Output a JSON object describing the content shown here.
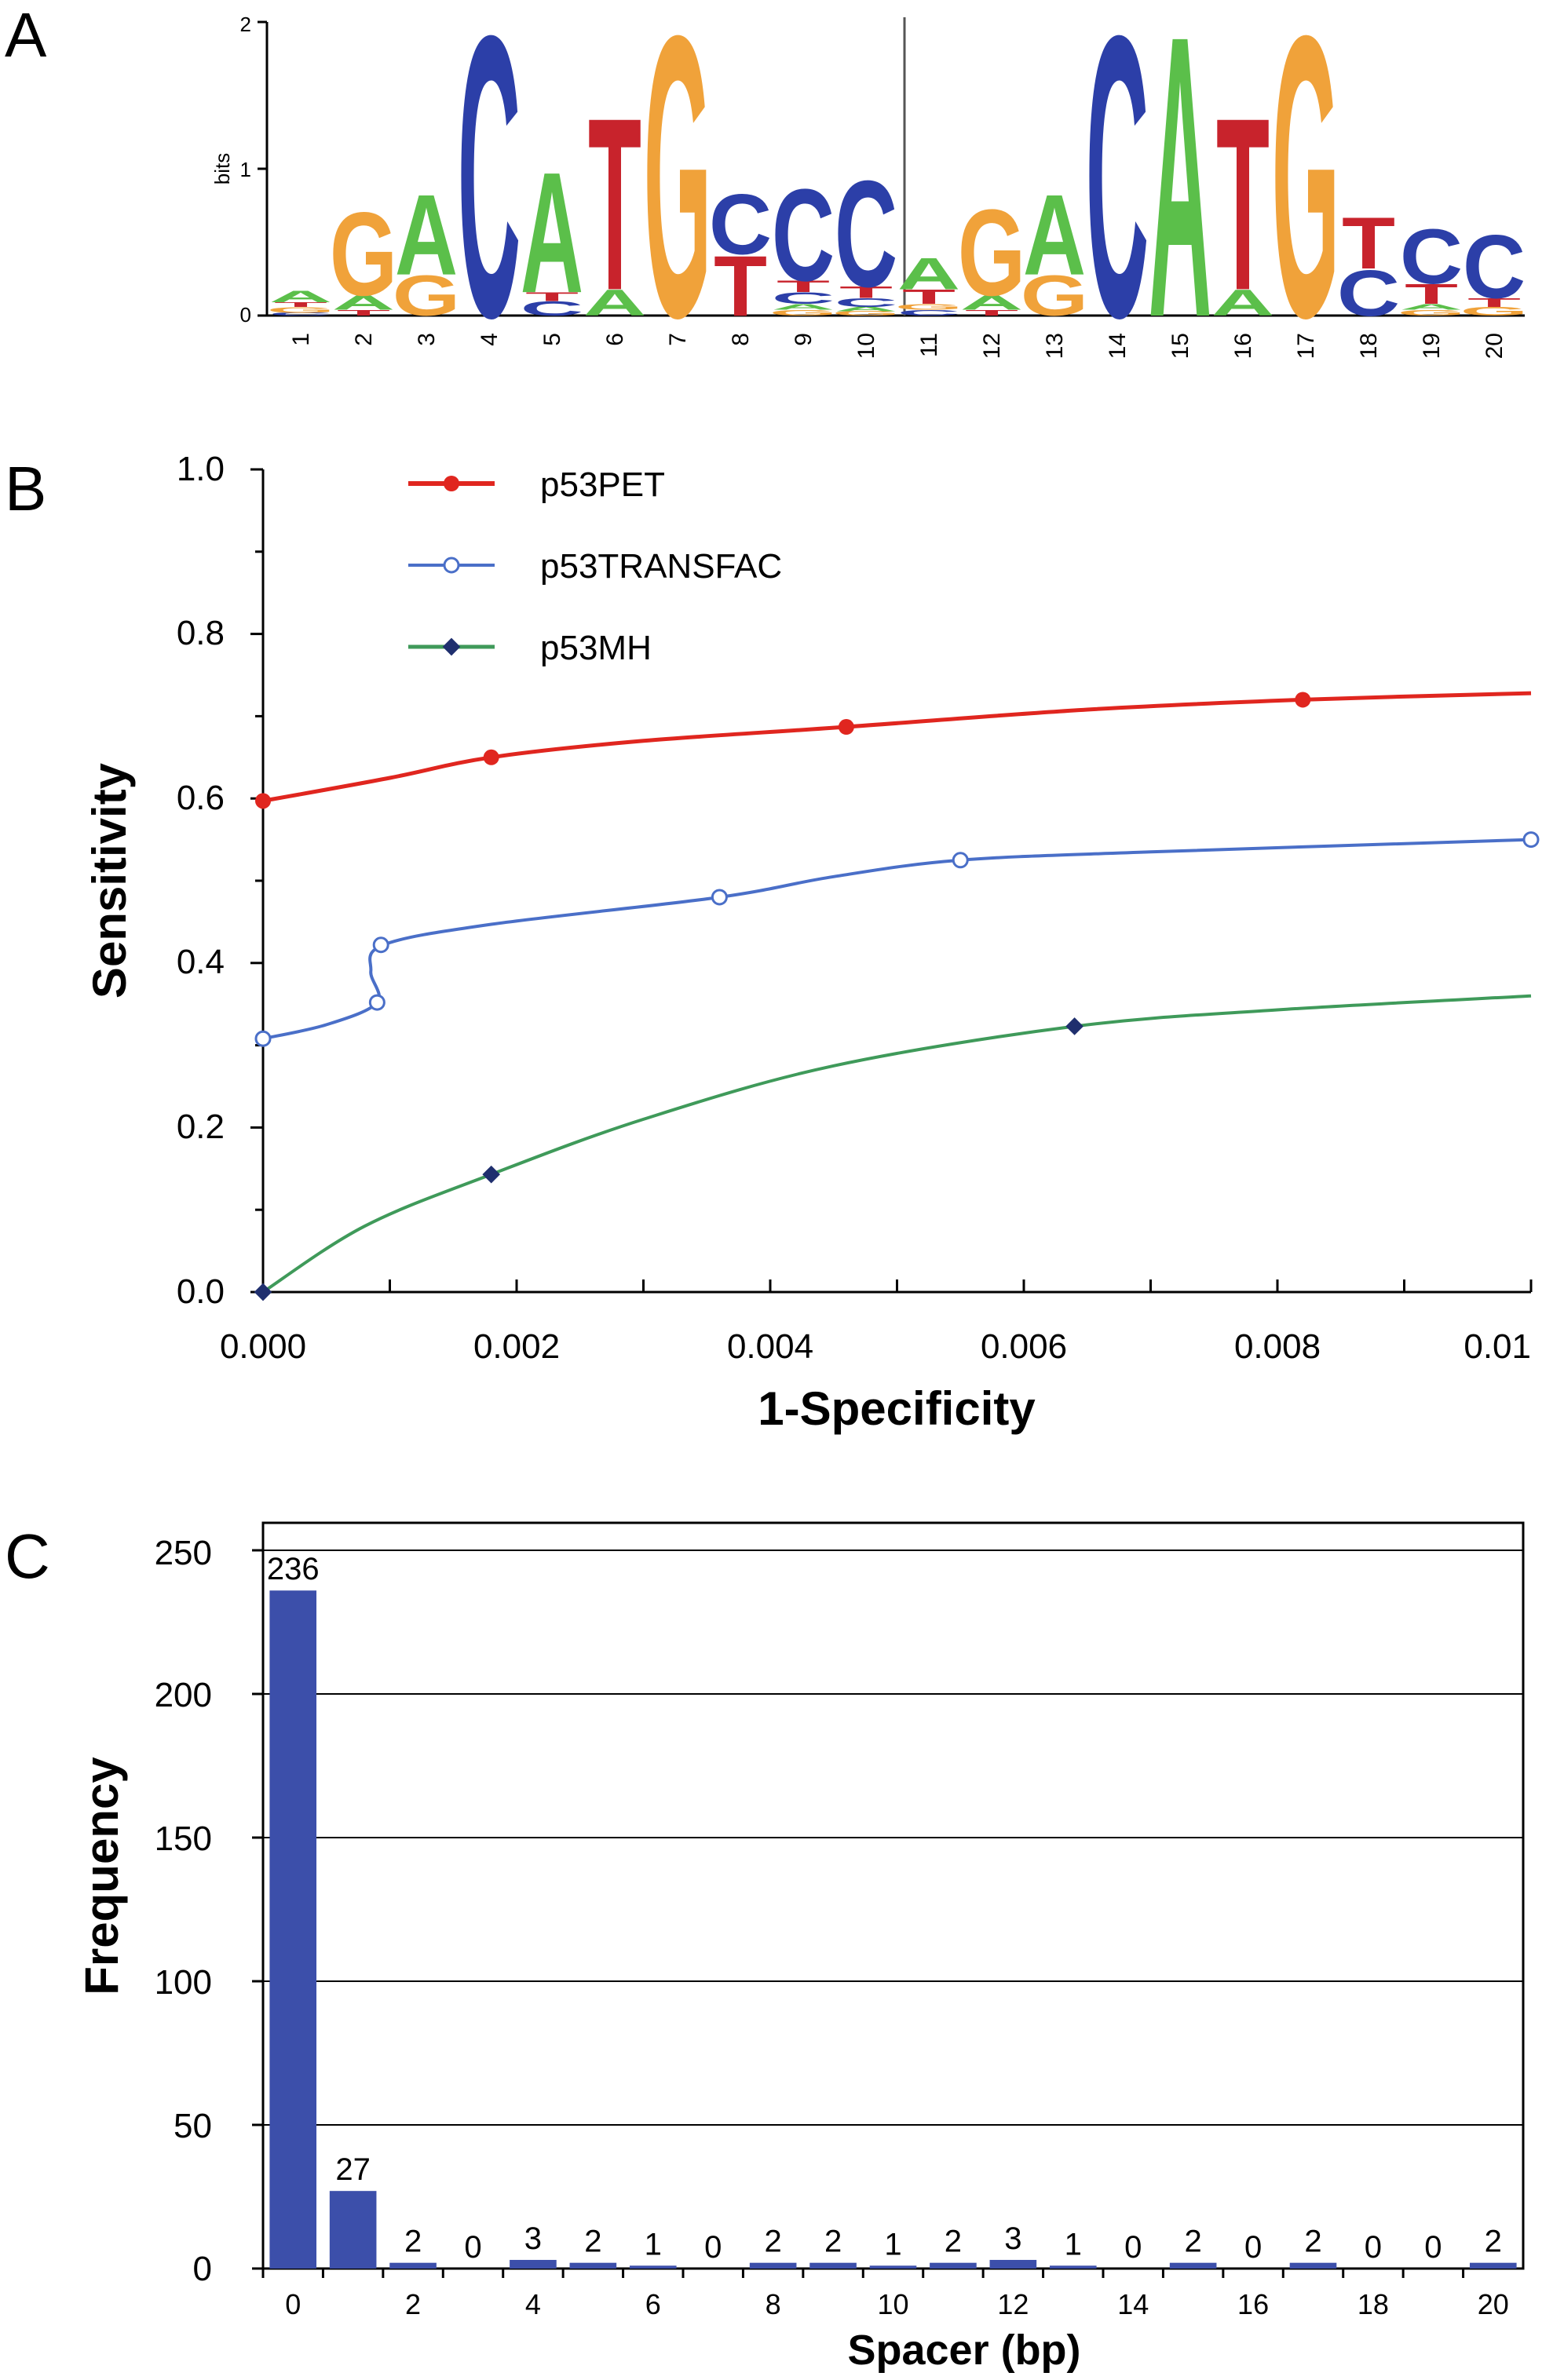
{
  "panels": {
    "a": {
      "label": "A"
    },
    "b": {
      "label": "B"
    },
    "c": {
      "label": "C"
    }
  },
  "colors": {
    "A": "#5bbf4a",
    "C": "#2c3fa8",
    "G": "#f0a23a",
    "T": "#c8232c",
    "roc_pet": "#e0261f",
    "roc_transfac": "#4a6fc8",
    "roc_mh": "#3f9a5a",
    "roc_mh_marker": "#1f2f6e",
    "bars": "#3c4faa"
  },
  "chart_data": [
    {
      "type": "sequence_logo",
      "ylabel": "bits",
      "ylim": [
        0,
        2
      ],
      "yticks": [
        "0",
        "1",
        "2"
      ],
      "positions": [
        {
          "pos": "1",
          "stack": [
            [
              "C",
              0.02
            ],
            [
              "G",
              0.04
            ],
            [
              "T",
              0.03
            ],
            [
              "A",
              0.08
            ]
          ]
        },
        {
          "pos": "2",
          "stack": [
            [
              "T",
              0.04
            ],
            [
              "A",
              0.1
            ],
            [
              "G",
              0.58
            ]
          ]
        },
        {
          "pos": "3",
          "stack": [
            [
              "G",
              0.28
            ],
            [
              "A",
              0.56
            ]
          ]
        },
        {
          "pos": "4",
          "stack": [
            [
              "C",
              1.96
            ]
          ]
        },
        {
          "pos": "5",
          "stack": [
            [
              "C",
              0.1
            ],
            [
              "T",
              0.06
            ],
            [
              "A",
              0.84
            ]
          ]
        },
        {
          "pos": "6",
          "stack": [
            [
              "A",
              0.18
            ],
            [
              "T",
              1.2
            ]
          ]
        },
        {
          "pos": "7",
          "stack": [
            [
              "G",
              1.96
            ]
          ]
        },
        {
          "pos": "8",
          "stack": [
            [
              "T",
              0.42
            ],
            [
              "C",
              0.42
            ]
          ]
        },
        {
          "pos": "9",
          "stack": [
            [
              "G",
              0.04
            ],
            [
              "A",
              0.04
            ],
            [
              "C",
              0.08
            ],
            [
              "T",
              0.08
            ],
            [
              "C",
              0.64
            ]
          ]
        },
        {
          "pos": "10",
          "stack": [
            [
              "G",
              0.03
            ],
            [
              "A",
              0.03
            ],
            [
              "C",
              0.06
            ],
            [
              "T",
              0.08
            ],
            [
              "C",
              0.74
            ]
          ]
        },
        {
          "pos": "11",
          "stack": [
            [
              "C",
              0.04
            ],
            [
              "G",
              0.04
            ],
            [
              "T",
              0.1
            ],
            [
              "A",
              0.22
            ]
          ]
        },
        {
          "pos": "12",
          "stack": [
            [
              "T",
              0.04
            ],
            [
              "A",
              0.1
            ],
            [
              "G",
              0.6
            ]
          ]
        },
        {
          "pos": "13",
          "stack": [
            [
              "G",
              0.28
            ],
            [
              "A",
              0.56
            ]
          ]
        },
        {
          "pos": "14",
          "stack": [
            [
              "C",
              1.96
            ]
          ]
        },
        {
          "pos": "15",
          "stack": [
            [
              "A",
              1.96
            ]
          ]
        },
        {
          "pos": "16",
          "stack": [
            [
              "A",
              0.18
            ],
            [
              "T",
              1.2
            ]
          ]
        },
        {
          "pos": "17",
          "stack": [
            [
              "G",
              1.96
            ]
          ]
        },
        {
          "pos": "18",
          "stack": [
            [
              "C",
              0.32
            ],
            [
              "T",
              0.36
            ]
          ]
        },
        {
          "pos": "19",
          "stack": [
            [
              "G",
              0.04
            ],
            [
              "A",
              0.04
            ],
            [
              "T",
              0.14
            ],
            [
              "C",
              0.38
            ]
          ]
        },
        {
          "pos": "20",
          "stack": [
            [
              "G",
              0.06
            ],
            [
              "T",
              0.06
            ],
            [
              "C",
              0.44
            ]
          ]
        }
      ]
    },
    {
      "type": "line",
      "xlabel": "1-Specificity",
      "ylabel": "Sensitivity",
      "xlim": [
        0,
        0.01
      ],
      "ylim": [
        0,
        1
      ],
      "xticks": [
        "0.000",
        "0.002",
        "0.004",
        "0.006",
        "0.008",
        "0.01"
      ],
      "yticks": [
        "0.0",
        "0.2",
        "0.4",
        "0.6",
        "0.8",
        "1.0"
      ],
      "legend": "top-left",
      "series": [
        {
          "name": "p53PET",
          "curve": [
            [
              0,
              0.597
            ],
            [
              0.001,
              0.625
            ],
            [
              0.0018,
              0.65
            ],
            [
              0.003,
              0.67
            ],
            [
              0.0046,
              0.687
            ],
            [
              0.0065,
              0.708
            ],
            [
              0.0082,
              0.72
            ],
            [
              0.01,
              0.728
            ]
          ],
          "points": [
            [
              0,
              0.597
            ],
            [
              0.0018,
              0.65
            ],
            [
              0.0046,
              0.687
            ],
            [
              0.0082,
              0.72
            ]
          ]
        },
        {
          "name": "p53TRANSFAC",
          "curve": [
            [
              0,
              0.308
            ],
            [
              0.0005,
              0.325
            ],
            [
              0.0009,
              0.352
            ],
            [
              0.00085,
              0.39
            ],
            [
              0.00095,
              0.422
            ],
            [
              0.0018,
              0.447
            ],
            [
              0.0036,
              0.48
            ],
            [
              0.0045,
              0.505
            ],
            [
              0.0055,
              0.525
            ],
            [
              0.007,
              0.535
            ],
            [
              0.01,
              0.55
            ]
          ],
          "points": [
            [
              0,
              0.308
            ],
            [
              0.0009,
              0.352
            ],
            [
              0.00093,
              0.422
            ],
            [
              0.0036,
              0.48
            ],
            [
              0.0055,
              0.525
            ],
            [
              0.01,
              0.55
            ]
          ]
        },
        {
          "name": "p53MH",
          "curve": [
            [
              0,
              0
            ],
            [
              0.0008,
              0.08
            ],
            [
              0.0018,
              0.143
            ],
            [
              0.003,
              0.21
            ],
            [
              0.0045,
              0.275
            ],
            [
              0.0064,
              0.323
            ],
            [
              0.008,
              0.343
            ],
            [
              0.01,
              0.36
            ]
          ],
          "points": [
            [
              0,
              0
            ],
            [
              0.0018,
              0.143
            ],
            [
              0.0064,
              0.323
            ]
          ]
        }
      ]
    },
    {
      "type": "bar",
      "xlabel": "Spacer (bp)",
      "ylabel": "Frequency",
      "ylim": [
        0,
        250
      ],
      "yticks": [
        "0",
        "50",
        "100",
        "150",
        "200",
        "250"
      ],
      "xticks": [
        "0",
        "2",
        "4",
        "6",
        "8",
        "10",
        "12",
        "14",
        "16",
        "18",
        "20"
      ],
      "grid": true,
      "categories": [
        "0",
        "1",
        "2",
        "3",
        "4",
        "5",
        "6",
        "7",
        "8",
        "9",
        "10",
        "11",
        "12",
        "13",
        "14",
        "15",
        "16",
        "17",
        "18",
        "19",
        "20"
      ],
      "values": [
        236,
        27,
        2,
        0,
        3,
        2,
        1,
        0,
        2,
        2,
        1,
        2,
        3,
        1,
        0,
        2,
        0,
        2,
        0,
        0,
        2
      ],
      "value_labels": [
        "236",
        "27",
        "2",
        "0",
        "3",
        "2",
        "1",
        "0",
        "2",
        "2",
        "1",
        "2",
        "3",
        "1",
        "0",
        "2",
        "0",
        "2",
        "0",
        "0",
        "2"
      ]
    }
  ]
}
